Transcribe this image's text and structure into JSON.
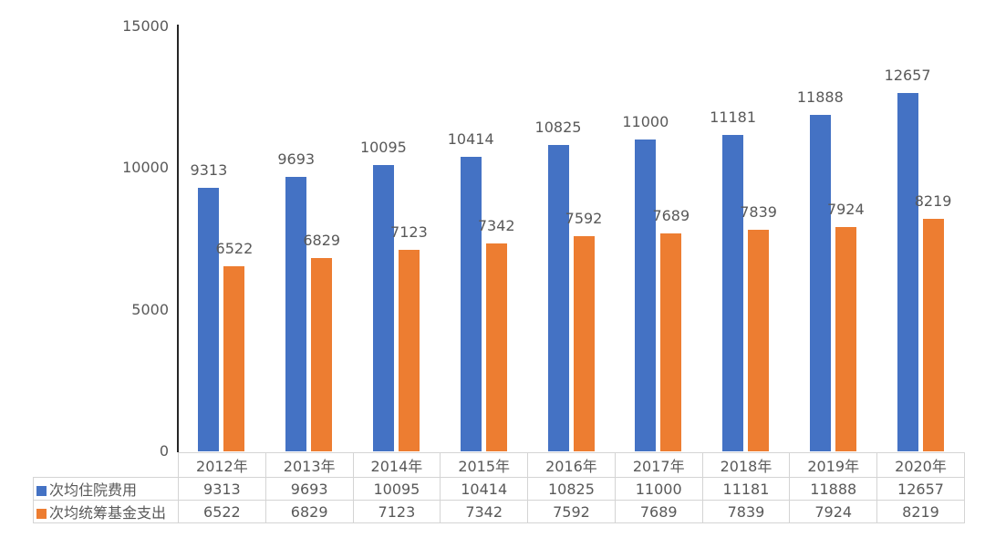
{
  "chart_data": {
    "type": "bar",
    "title": "",
    "xlabel": "",
    "ylabel": "",
    "categories": [
      "2012年",
      "2013年",
      "2014年",
      "2015年",
      "2016年",
      "2017年",
      "2018年",
      "2019年",
      "2020年"
    ],
    "series": [
      {
        "name": "次均住院费用",
        "color": "#4472C4",
        "values": [
          9313,
          9693,
          10095,
          10414,
          10825,
          11000,
          11181,
          11888,
          12657
        ]
      },
      {
        "name": "次均统筹基金支出",
        "color": "#ED7D31",
        "values": [
          6522,
          6829,
          7123,
          7342,
          7592,
          7689,
          7839,
          7924,
          8219
        ]
      }
    ],
    "ylim": [
      0,
      15000
    ],
    "yticks": [
      15000,
      10000,
      5000,
      0
    ],
    "grid": false,
    "data_labels": true,
    "legend_position": "table-left-column"
  },
  "colors": {
    "background": "#FFFFFF",
    "axis_line": "#262626",
    "text": "#595959",
    "table_border": "#D4D4D4",
    "series_blue": "#4472C4",
    "series_orange": "#ED7D31"
  }
}
